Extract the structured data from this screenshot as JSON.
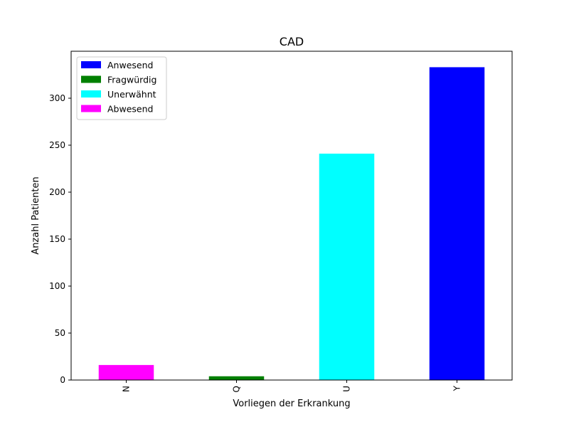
{
  "chart_data": {
    "type": "bar",
    "title": "CAD",
    "xlabel": "Vorliegen der Erkrankung",
    "ylabel": "Anzahl Patienten",
    "categories": [
      "N",
      "Q",
      "U",
      "Y"
    ],
    "values": [
      16,
      4,
      241,
      333
    ],
    "bar_colors": [
      "#ff00ff",
      "#008000",
      "#00ffff",
      "#0000ff"
    ],
    "ylim": [
      0,
      350
    ],
    "yticks": [
      0,
      50,
      100,
      150,
      200,
      250,
      300
    ],
    "grid": false,
    "legend": {
      "placement": "top-left",
      "entries": [
        {
          "label": "Anwesend",
          "color": "#0000ff"
        },
        {
          "label": "Fragwürdig",
          "color": "#008000"
        },
        {
          "label": "Unerwähnt",
          "color": "#00ffff"
        },
        {
          "label": "Abwesend",
          "color": "#ff00ff"
        }
      ]
    }
  }
}
